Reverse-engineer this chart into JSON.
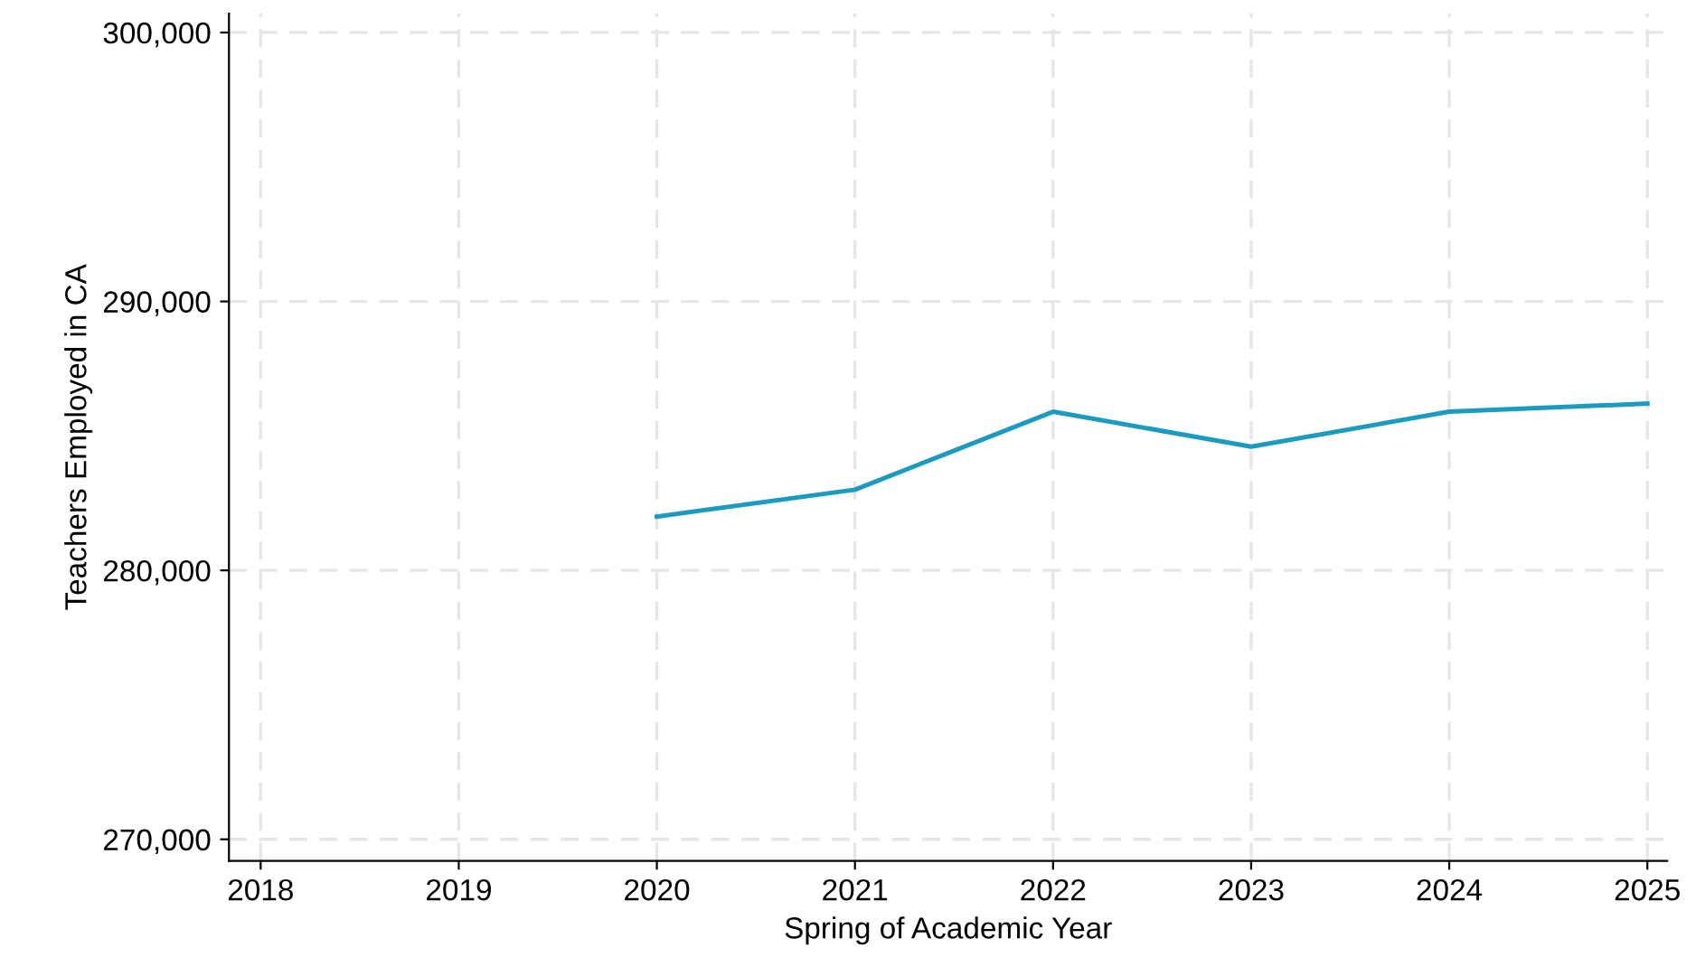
{
  "chart_data": {
    "type": "line",
    "xlabel": "Spring of Academic Year",
    "ylabel": "Teachers Employed in CA",
    "x": [
      2020,
      2021,
      2022,
      2023,
      2024,
      2025
    ],
    "series": [
      {
        "color": "#1b9bbd",
        "values": [
          282000,
          283000,
          285900,
          284600,
          285900,
          286200
        ]
      }
    ],
    "xlim": [
      2017.84,
      2025.1
    ],
    "xticks": [
      2018,
      2019,
      2020,
      2021,
      2022,
      2023,
      2024,
      2025
    ],
    "ylim": [
      269200,
      300700
    ],
    "yticks": [
      {
        "value": 270000,
        "label": "270,000"
      },
      {
        "value": 280000,
        "label": "280,000"
      },
      {
        "value": 290000,
        "label": "290,000"
      },
      {
        "value": 300000,
        "label": "300,000"
      }
    ],
    "grid": true,
    "marker": "none",
    "line_style": "solid"
  }
}
